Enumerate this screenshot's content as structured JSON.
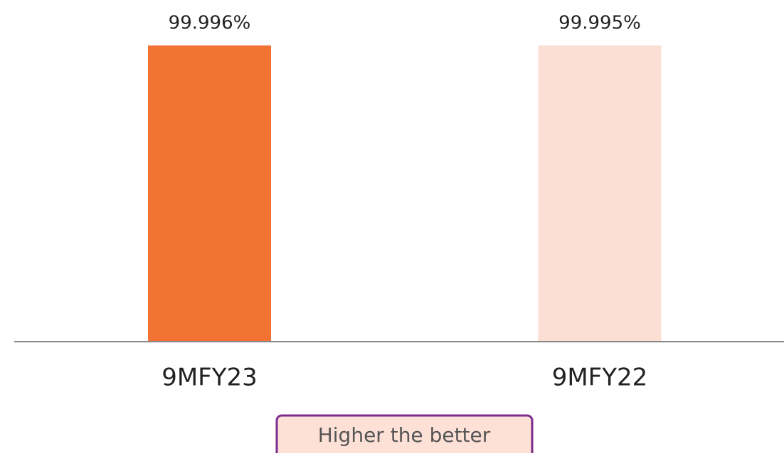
{
  "chart_data": {
    "type": "bar",
    "categories": [
      "9MFY23",
      "9MFY22"
    ],
    "values": [
      99.996,
      99.995
    ],
    "value_labels": [
      "99.996%",
      "99.995%"
    ],
    "colors": [
      "#f37335",
      "#fcdfd4"
    ],
    "ylim": [
      0,
      100
    ],
    "annotation": "Higher the better"
  }
}
